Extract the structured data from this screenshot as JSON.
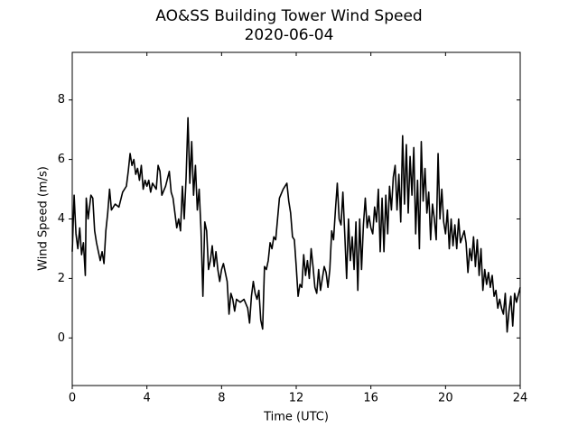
{
  "chart_data": {
    "type": "line",
    "title": "AO&SS Building Tower Wind Speed",
    "subtitle": "2020-06-04",
    "x_label": "Time (UTC)",
    "y_label": "Wind Speed (m/s)",
    "color": "#000000",
    "xlim": [
      0,
      24
    ],
    "xticks": [
      0,
      4,
      8,
      12,
      16,
      20,
      24
    ],
    "ylim": [
      -1.6,
      9.6
    ],
    "yticks": [
      0,
      2,
      4,
      6,
      8
    ],
    "grid": false,
    "x": [
      0,
      0.1,
      0.2,
      0.3,
      0.4,
      0.5,
      0.6,
      0.7,
      0.75,
      0.85,
      1.0,
      1.1,
      1.2,
      1.3,
      1.4,
      1.5,
      1.6,
      1.7,
      1.8,
      1.9,
      2.0,
      2.1,
      2.3,
      2.5,
      2.7,
      2.9,
      3.0,
      3.1,
      3.2,
      3.3,
      3.4,
      3.5,
      3.6,
      3.7,
      3.8,
      3.9,
      4.0,
      4.1,
      4.2,
      4.3,
      4.5,
      4.6,
      4.7,
      4.8,
      5.0,
      5.2,
      5.3,
      5.4,
      5.5,
      5.6,
      5.7,
      5.8,
      5.9,
      6.0,
      6.1,
      6.2,
      6.25,
      6.3,
      6.4,
      6.5,
      6.6,
      6.7,
      6.8,
      6.9,
      7.0,
      7.1,
      7.2,
      7.3,
      7.4,
      7.5,
      7.6,
      7.7,
      7.8,
      7.9,
      8.0,
      8.1,
      8.2,
      8.3,
      8.4,
      8.5,
      8.6,
      8.7,
      8.8,
      9.0,
      9.2,
      9.4,
      9.5,
      9.6,
      9.7,
      9.8,
      9.9,
      10.0,
      10.1,
      10.2,
      10.3,
      10.4,
      10.5,
      10.6,
      10.7,
      10.8,
      10.9,
      11.0,
      11.1,
      11.3,
      11.5,
      11.6,
      11.7,
      11.8,
      11.9,
      12.0,
      12.1,
      12.2,
      12.3,
      12.4,
      12.5,
      12.6,
      12.7,
      12.8,
      12.9,
      13.0,
      13.1,
      13.2,
      13.3,
      13.4,
      13.5,
      13.6,
      13.7,
      13.8,
      13.9,
      14.0,
      14.1,
      14.2,
      14.3,
      14.4,
      14.5,
      14.6,
      14.7,
      14.8,
      14.9,
      15.0,
      15.1,
      15.2,
      15.3,
      15.4,
      15.5,
      15.6,
      15.7,
      15.8,
      15.9,
      16.0,
      16.1,
      16.2,
      16.3,
      16.4,
      16.5,
      16.6,
      16.7,
      16.8,
      16.9,
      17.0,
      17.1,
      17.2,
      17.3,
      17.4,
      17.5,
      17.6,
      17.7,
      17.8,
      17.9,
      18.0,
      18.1,
      18.2,
      18.3,
      18.4,
      18.5,
      18.6,
      18.7,
      18.8,
      18.9,
      19.0,
      19.1,
      19.2,
      19.3,
      19.4,
      19.5,
      19.6,
      19.7,
      19.8,
      19.9,
      20.0,
      20.1,
      20.2,
      20.3,
      20.4,
      20.5,
      20.6,
      20.7,
      20.8,
      21.0,
      21.1,
      21.2,
      21.3,
      21.4,
      21.5,
      21.6,
      21.7,
      21.8,
      21.9,
      22.0,
      22.1,
      22.2,
      22.3,
      22.4,
      22.5,
      22.6,
      22.7,
      22.8,
      22.9,
      23.0,
      23.1,
      23.2,
      23.3,
      23.4,
      23.5,
      23.6,
      23.7,
      23.8,
      24.0
    ],
    "values": [
      2.9,
      4.8,
      3.5,
      3.0,
      3.7,
      2.8,
      3.2,
      2.1,
      4.7,
      4.0,
      4.8,
      4.7,
      3.6,
      3.2,
      2.9,
      2.6,
      2.9,
      2.5,
      3.6,
      4.2,
      5.0,
      4.3,
      4.5,
      4.4,
      4.9,
      5.1,
      5.6,
      6.2,
      5.8,
      6.0,
      5.5,
      5.7,
      5.3,
      5.8,
      5.0,
      5.3,
      5.1,
      5.3,
      4.9,
      5.2,
      5.0,
      5.8,
      5.6,
      4.8,
      5.1,
      5.6,
      4.9,
      4.7,
      4.2,
      3.7,
      4.0,
      3.6,
      5.1,
      4.0,
      5.4,
      7.4,
      6.3,
      5.2,
      6.6,
      4.8,
      5.8,
      4.3,
      5.0,
      3.6,
      1.4,
      3.9,
      3.6,
      2.3,
      2.6,
      3.1,
      2.4,
      2.9,
      2.3,
      1.9,
      2.3,
      2.5,
      2.2,
      1.9,
      0.8,
      1.5,
      1.3,
      0.9,
      1.3,
      1.2,
      1.3,
      1.0,
      0.5,
      1.4,
      1.9,
      1.5,
      1.3,
      1.6,
      0.6,
      0.3,
      2.4,
      2.3,
      2.6,
      3.2,
      3.0,
      3.4,
      3.3,
      4.0,
      4.7,
      5.0,
      5.2,
      4.6,
      4.2,
      3.4,
      3.3,
      2.4,
      1.4,
      1.8,
      1.7,
      2.8,
      2.1,
      2.6,
      2.0,
      3.0,
      2.4,
      1.7,
      1.5,
      2.3,
      1.6,
      2.0,
      2.4,
      2.2,
      1.7,
      2.3,
      3.6,
      3.3,
      4.3,
      5.2,
      4.0,
      3.8,
      4.9,
      3.5,
      2.0,
      4.0,
      2.6,
      3.4,
      2.3,
      3.9,
      1.6,
      4.0,
      2.3,
      3.8,
      4.7,
      3.7,
      4.1,
      3.7,
      3.5,
      4.4,
      3.9,
      5.0,
      2.9,
      4.7,
      2.9,
      4.8,
      3.5,
      5.1,
      4.3,
      5.4,
      5.8,
      4.3,
      5.5,
      3.9,
      6.8,
      4.5,
      6.5,
      4.2,
      6.1,
      4.8,
      6.4,
      3.5,
      5.3,
      3.0,
      6.6,
      4.6,
      5.7,
      4.2,
      4.9,
      3.3,
      4.5,
      4.0,
      3.3,
      6.2,
      4.0,
      5.0,
      3.9,
      3.5,
      4.3,
      3.0,
      4.0,
      3.1,
      3.8,
      3.0,
      4.0,
      3.2,
      3.6,
      3.2,
      2.2,
      3.0,
      2.6,
      3.4,
      2.4,
      3.3,
      2.1,
      3.0,
      1.6,
      2.3,
      1.8,
      2.2,
      1.7,
      2.1,
      1.4,
      1.6,
      1.0,
      1.3,
      1.0,
      0.8,
      1.5,
      0.2,
      0.9,
      1.4,
      0.4,
      1.5,
      1.2,
      1.7
    ]
  }
}
